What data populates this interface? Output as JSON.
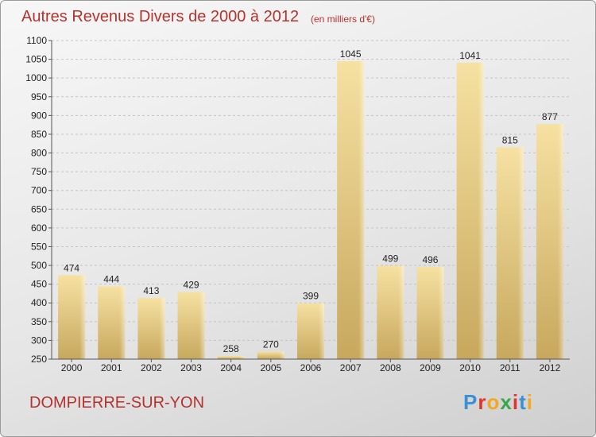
{
  "chart_data": {
    "type": "bar",
    "title": "Autres Revenus Divers de 2000 à 2012",
    "subtitle": "(en milliers d'€)",
    "categories": [
      "2000",
      "2001",
      "2002",
      "2003",
      "2004",
      "2005",
      "2006",
      "2007",
      "2008",
      "2009",
      "2010",
      "2011",
      "2012"
    ],
    "values": [
      474,
      444,
      413,
      429,
      258,
      270,
      399,
      1045,
      499,
      496,
      1041,
      815,
      877
    ],
    "ylim": [
      250,
      1100
    ],
    "yticks": [
      250,
      300,
      350,
      400,
      450,
      500,
      550,
      600,
      650,
      700,
      750,
      800,
      850,
      900,
      950,
      1000,
      1050,
      1100
    ],
    "grid": true,
    "colors": {
      "bar_light": "#f6e1a2",
      "bar_dark": "#c7a85d",
      "title": "#b5332e"
    }
  },
  "footer": {
    "commune": "DOMPIERRE-SUR-YON"
  },
  "logo": {
    "letters": [
      "P",
      "r",
      "o",
      "x",
      "i",
      "t",
      "i"
    ],
    "colors": [
      "#3a8fd6",
      "#e2342a",
      "#f2a823",
      "#3aa64a",
      "#e2342a",
      "#3a8fd6",
      "#f2a823"
    ]
  }
}
